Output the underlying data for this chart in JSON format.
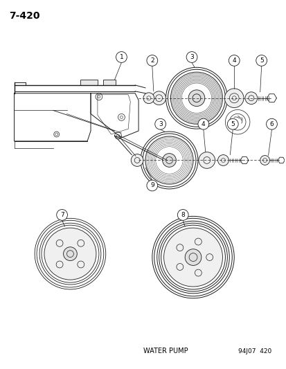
{
  "title": "7-420",
  "footer_left": "WATER PUMP",
  "footer_right": "94J07  420",
  "bg_color": "#ffffff",
  "text_color": "#000000",
  "line_color": "#1a1a1a",
  "title_fontsize": 10,
  "label_fontsize": 7,
  "footer_fontsize": 6.5
}
